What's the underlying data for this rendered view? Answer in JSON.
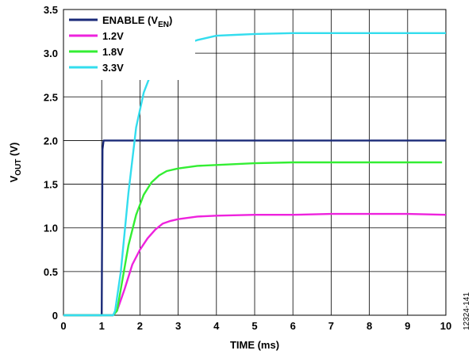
{
  "chart_data": {
    "type": "line",
    "xlabel": "TIME (ms)",
    "ylabel_main": "V",
    "ylabel_sub": "OUT",
    "ylabel_unit": " (V)",
    "xlim": [
      0,
      10
    ],
    "ylim": [
      0,
      3.5
    ],
    "xticks": [
      "0",
      "1",
      "2",
      "3",
      "4",
      "5",
      "6",
      "7",
      "8",
      "9",
      "10"
    ],
    "yticks": [
      "0",
      "0.5",
      "1.0",
      "1.5",
      "2.0",
      "2.5",
      "3.0",
      "3.5"
    ],
    "grid": true,
    "legend_position": "top-left",
    "figure_id": "12324-141",
    "series": [
      {
        "name_main": "ENABLE (V",
        "name_sub": "EN",
        "name_tail": ")",
        "color": "#1a2a78",
        "points": [
          [
            0,
            0
          ],
          [
            1.0,
            0
          ],
          [
            1.02,
            1.9
          ],
          [
            1.05,
            2.0
          ],
          [
            10,
            2.0
          ]
        ]
      },
      {
        "name": "1.2V",
        "color": "#ee22dd",
        "points": [
          [
            0,
            0
          ],
          [
            1.3,
            0
          ],
          [
            1.4,
            0.05
          ],
          [
            1.6,
            0.3
          ],
          [
            1.8,
            0.58
          ],
          [
            2.0,
            0.75
          ],
          [
            2.2,
            0.88
          ],
          [
            2.4,
            0.98
          ],
          [
            2.6,
            1.05
          ],
          [
            2.8,
            1.08
          ],
          [
            3.0,
            1.1
          ],
          [
            3.5,
            1.13
          ],
          [
            4.0,
            1.14
          ],
          [
            5.0,
            1.15
          ],
          [
            6.0,
            1.15
          ],
          [
            7.0,
            1.16
          ],
          [
            8.0,
            1.16
          ],
          [
            9.0,
            1.16
          ],
          [
            10.0,
            1.15
          ]
        ]
      },
      {
        "name": "1.8V",
        "color": "#33ee33",
        "points": [
          [
            0,
            0
          ],
          [
            1.3,
            0
          ],
          [
            1.4,
            0.05
          ],
          [
            1.5,
            0.3
          ],
          [
            1.7,
            0.8
          ],
          [
            1.9,
            1.15
          ],
          [
            2.1,
            1.38
          ],
          [
            2.3,
            1.52
          ],
          [
            2.5,
            1.6
          ],
          [
            2.7,
            1.65
          ],
          [
            3.0,
            1.68
          ],
          [
            3.5,
            1.71
          ],
          [
            4.0,
            1.72
          ],
          [
            5.0,
            1.74
          ],
          [
            6.0,
            1.75
          ],
          [
            7.0,
            1.75
          ],
          [
            8.0,
            1.75
          ],
          [
            9.0,
            1.75
          ],
          [
            9.9,
            1.75
          ]
        ]
      },
      {
        "name": "3.3V",
        "color": "#33ddee",
        "points": [
          [
            0,
            0
          ],
          [
            1.3,
            0
          ],
          [
            1.35,
            0.05
          ],
          [
            1.5,
            0.5
          ],
          [
            1.7,
            1.4
          ],
          [
            1.9,
            2.15
          ],
          [
            2.1,
            2.55
          ],
          [
            2.3,
            2.78
          ],
          [
            2.5,
            2.93
          ],
          [
            2.7,
            3.03
          ],
          [
            3.0,
            3.08
          ],
          [
            3.5,
            3.15
          ],
          [
            4.0,
            3.2
          ],
          [
            4.5,
            3.21
          ],
          [
            5.0,
            3.22
          ],
          [
            6.0,
            3.23
          ],
          [
            7.0,
            3.23
          ],
          [
            8.0,
            3.23
          ],
          [
            9.0,
            3.23
          ],
          [
            10.0,
            3.23
          ]
        ]
      }
    ]
  }
}
